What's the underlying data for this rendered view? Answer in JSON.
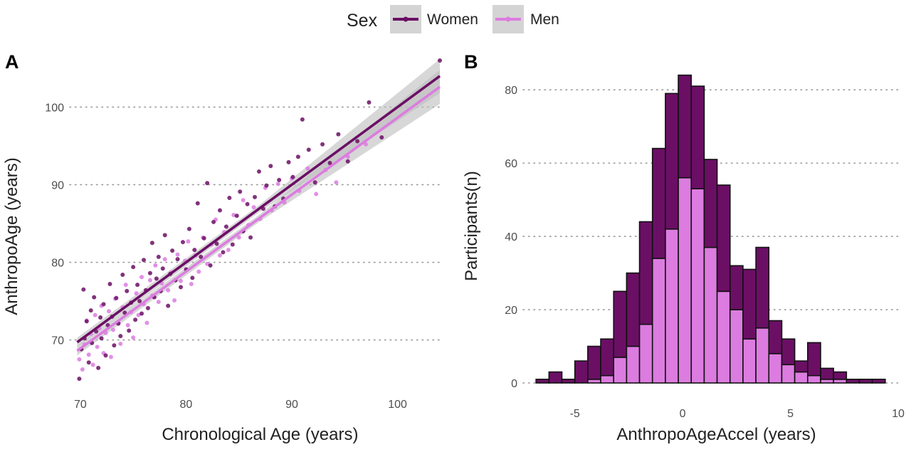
{
  "legend": {
    "title": "Sex",
    "items": [
      {
        "label": "Women",
        "color": "#6b0f65"
      },
      {
        "label": "Men",
        "color": "#dc7ce0"
      }
    ],
    "placement": "top-center"
  },
  "panels": [
    {
      "label": "A"
    },
    {
      "label": "B"
    }
  ],
  "chart_data": [
    {
      "type": "scatter",
      "panel": "A",
      "xlabel": "Chronological Age (years)",
      "ylabel": "AnthropoAge (years)",
      "xlim": [
        69,
        104
      ],
      "ylim": [
        64,
        106
      ],
      "xticks": [
        70,
        80,
        90,
        100
      ],
      "yticks": [
        70,
        80,
        90,
        100
      ],
      "grid": "horizontal dotted",
      "series": [
        {
          "name": "Women",
          "color": "#6b0f65",
          "trend": {
            "x": [
              69.7,
              104
            ],
            "y": [
              69.7,
              104
            ]
          },
          "points": [
            [
              69.9,
              65
            ],
            [
              70.1,
              68.8
            ],
            [
              70.3,
              76.5
            ],
            [
              70.4,
              70.2
            ],
            [
              70.6,
              72.4
            ],
            [
              70.8,
              67.1
            ],
            [
              71,
              73.8
            ],
            [
              71.1,
              69.6
            ],
            [
              71.3,
              75.5
            ],
            [
              71.5,
              71.1
            ],
            [
              71.7,
              66.4
            ],
            [
              71.9,
              72.9
            ],
            [
              72,
              70.2
            ],
            [
              72.2,
              74.6
            ],
            [
              72.4,
              68
            ],
            [
              72.6,
              71.9
            ],
            [
              72.8,
              77.2
            ],
            [
              73,
              73
            ],
            [
              73.2,
              69.3
            ],
            [
              73.4,
              75.4
            ],
            [
              73.6,
              72.1
            ],
            [
              73.8,
              70.5
            ],
            [
              74,
              78.4
            ],
            [
              74.2,
              73.5
            ],
            [
              74.4,
              76.3
            ],
            [
              74.6,
              71.2
            ],
            [
              74.8,
              74.8
            ],
            [
              75,
              79.4
            ],
            [
              75.2,
              72.6
            ],
            [
              75.4,
              77.1
            ],
            [
              75.6,
              75
            ],
            [
              75.8,
              73.4
            ],
            [
              76,
              80.3
            ],
            [
              76.2,
              76.4
            ],
            [
              76.4,
              74.1
            ],
            [
              76.6,
              78.6
            ],
            [
              76.8,
              82.5
            ],
            [
              77,
              75.5
            ],
            [
              77.2,
              77.9
            ],
            [
              77.4,
              80.7
            ],
            [
              77.6,
              76.3
            ],
            [
              77.8,
              79.2
            ],
            [
              78,
              83.5
            ],
            [
              78.3,
              74.4
            ],
            [
              78.5,
              78.5
            ],
            [
              78.7,
              81.5
            ],
            [
              79,
              77.7
            ],
            [
              79.2,
              80.4
            ],
            [
              79.5,
              76.8
            ],
            [
              79.7,
              82.6
            ],
            [
              80,
              79.1
            ],
            [
              80.3,
              84.3
            ],
            [
              80.6,
              78
            ],
            [
              80.8,
              81.6
            ],
            [
              81.1,
              87.6
            ],
            [
              81.4,
              80.7
            ],
            [
              81.7,
              83.1
            ],
            [
              82,
              90.2
            ],
            [
              82.3,
              79.6
            ],
            [
              82.6,
              85.2
            ],
            [
              82.9,
              82.4
            ],
            [
              83.2,
              86.7
            ],
            [
              83.5,
              81.3
            ],
            [
              83.8,
              84.6
            ],
            [
              84.1,
              88.3
            ],
            [
              84.4,
              82.3
            ],
            [
              84.8,
              86
            ],
            [
              85.1,
              89.1
            ],
            [
              85.4,
              84
            ],
            [
              85.8,
              87.5
            ],
            [
              86.1,
              83.2
            ],
            [
              86.5,
              88.4
            ],
            [
              86.9,
              91.7
            ],
            [
              87.3,
              86.9
            ],
            [
              87.6,
              89.9
            ],
            [
              88,
              92.4
            ],
            [
              88.4,
              87.2
            ],
            [
              88.8,
              90.6
            ],
            [
              89.2,
              88.2
            ],
            [
              89.7,
              92.9
            ],
            [
              90.1,
              91
            ],
            [
              90.6,
              93.6
            ],
            [
              91,
              98.4
            ],
            [
              91.6,
              94.5
            ],
            [
              92.2,
              90.3
            ],
            [
              92.9,
              95.2
            ],
            [
              93.6,
              92.8
            ],
            [
              94.4,
              96.5
            ],
            [
              95.3,
              93
            ],
            [
              96.2,
              95.6
            ],
            [
              97.3,
              100.6
            ],
            [
              98.5,
              96.1
            ],
            [
              104,
              106
            ]
          ]
        },
        {
          "name": "Men",
          "color": "#dc7ce0",
          "trend": {
            "x": [
              69.7,
              104
            ],
            "y": [
              68.6,
              102.6
            ]
          },
          "points": [
            [
              69.9,
              67.5
            ],
            [
              70.2,
              66.2
            ],
            [
              70.4,
              69.4
            ],
            [
              70.6,
              72.5
            ],
            [
              70.8,
              68.1
            ],
            [
              71,
              70.8
            ],
            [
              71.2,
              66.8
            ],
            [
              71.4,
              73.2
            ],
            [
              71.6,
              69.1
            ],
            [
              71.8,
              71.5
            ],
            [
              72,
              74.4
            ],
            [
              72.2,
              68.3
            ],
            [
              72.4,
              70.9
            ],
            [
              72.7,
              73.7
            ],
            [
              72.9,
              67.8
            ],
            [
              73.1,
              71.3
            ],
            [
              73.3,
              75.3
            ],
            [
              73.6,
              72.2
            ],
            [
              73.8,
              69.5
            ],
            [
              74,
              74.2
            ],
            [
              74.3,
              77.1
            ],
            [
              74.5,
              71.9
            ],
            [
              74.8,
              73.6
            ],
            [
              75,
              70.3
            ],
            [
              75.3,
              76
            ],
            [
              75.5,
              73.2
            ],
            [
              75.8,
              78.1
            ],
            [
              76,
              74.6
            ],
            [
              76.3,
              72.2
            ],
            [
              76.6,
              77.7
            ],
            [
              76.8,
              75.7
            ],
            [
              77.1,
              79.6
            ],
            [
              77.4,
              74.9
            ],
            [
              77.7,
              77.3
            ],
            [
              78,
              80.4
            ],
            [
              78.3,
              76.4
            ],
            [
              78.6,
              78.7
            ],
            [
              78.9,
              75.1
            ],
            [
              79.2,
              81
            ],
            [
              79.5,
              77.6
            ],
            [
              79.9,
              80.2
            ],
            [
              80.2,
              82.7
            ],
            [
              80.5,
              77.2
            ],
            [
              80.9,
              80.9
            ],
            [
              81.2,
              78.8
            ],
            [
              81.6,
              83.2
            ],
            [
              82,
              79.8
            ],
            [
              82.4,
              82.3
            ],
            [
              82.8,
              85.5
            ],
            [
              83.2,
              80.9
            ],
            [
              83.6,
              83.9
            ],
            [
              84,
              81.6
            ],
            [
              84.5,
              86.1
            ],
            [
              85,
              83.2
            ],
            [
              85.4,
              88
            ],
            [
              85.9,
              84.8
            ],
            [
              86.4,
              87.1
            ],
            [
              87,
              85.6
            ],
            [
              87.5,
              89.6
            ],
            [
              88.1,
              86.7
            ],
            [
              88.7,
              90.1
            ],
            [
              89.3,
              87.7
            ],
            [
              90,
              90.8
            ],
            [
              90.7,
              89.2
            ],
            [
              91.5,
              92.1
            ],
            [
              92.3,
              88.8
            ],
            [
              93.2,
              91.9
            ],
            [
              94.2,
              90.3
            ],
            [
              95.3,
              93.6
            ],
            [
              97,
              95.2
            ]
          ]
        }
      ]
    },
    {
      "type": "bar",
      "panel": "B",
      "stacked": true,
      "xlabel": "AnthropoAgeAccel (years)",
      "ylabel": "Participants(n)",
      "xlim": [
        -7.4,
        10
      ],
      "ylim": [
        0,
        88
      ],
      "xticks": [
        -5,
        0,
        5,
        10
      ],
      "yticks": [
        0,
        20,
        40,
        60,
        80
      ],
      "grid": "horizontal dotted",
      "bin_width": 0.6,
      "bin_starts": [
        -6.8,
        -6.2,
        -5.6,
        -5,
        -4.4,
        -3.8,
        -3.2,
        -2.6,
        -2,
        -1.4,
        -0.8,
        -0.2,
        0.4,
        1,
        1.6,
        2.2,
        2.8,
        3.4,
        4,
        4.6,
        5.2,
        5.8,
        6.4,
        7,
        7.6,
        8.2,
        8.8
      ],
      "series": [
        {
          "name": "Men",
          "color": "#dc7ce0",
          "values": [
            0,
            0,
            0,
            0,
            1,
            2,
            7,
            10,
            16,
            34,
            42,
            56,
            53,
            37,
            25,
            20,
            12,
            15,
            8,
            5,
            3,
            2,
            1,
            1,
            0,
            0,
            0
          ]
        },
        {
          "name": "Women",
          "color": "#6b0f65",
          "values": [
            1,
            3,
            1,
            6,
            9,
            10,
            18,
            20,
            28,
            30,
            37,
            28,
            28,
            24,
            29,
            12,
            19,
            22,
            9,
            7,
            3,
            9,
            3,
            2,
            1,
            1,
            1
          ]
        }
      ]
    }
  ]
}
